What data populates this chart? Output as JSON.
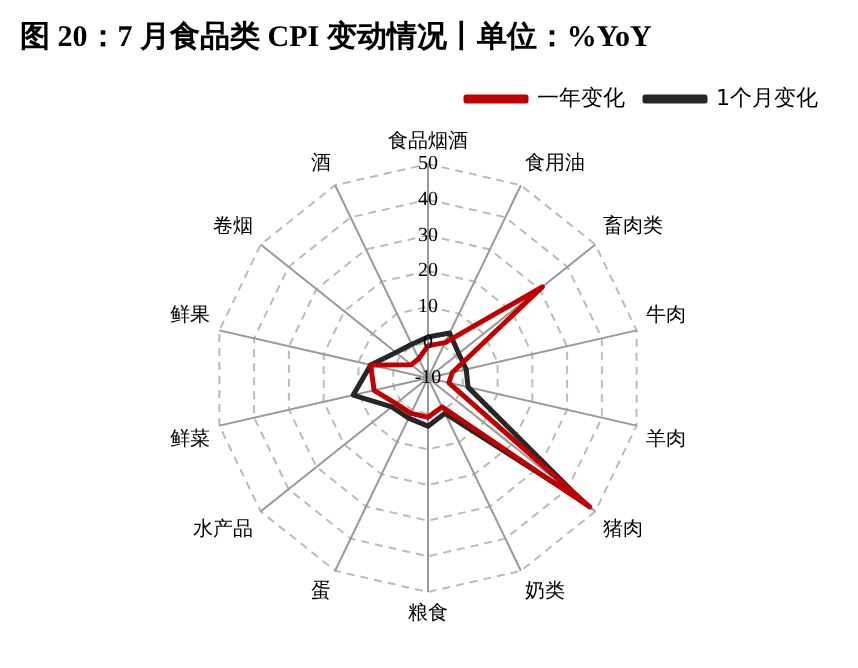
{
  "chart_data": {
    "type": "radar",
    "title": "图 20：7 月食品类 CPI 变动情况丨单位：%YoY",
    "categories": [
      "食品烟酒",
      "食用油",
      "畜肉类",
      "牛肉",
      "羊肉",
      "猪肉",
      "奶类",
      "粮食",
      "蛋",
      "水产品",
      "鲜菜",
      "鲜果",
      "卷烟",
      "酒"
    ],
    "series": [
      {
        "name": "一年变化",
        "color": "#c00000",
        "values": [
          -1,
          1,
          31,
          -3,
          -4,
          48,
          -1,
          1,
          1,
          1.5,
          5.5,
          6.5,
          -4,
          -4
        ]
      },
      {
        "name": "1个月变化",
        "color": "#262626",
        "values": [
          1.5,
          4,
          1,
          1,
          1.5,
          45,
          1,
          3.5,
          2.5,
          3,
          11.5,
          6.5,
          1.5,
          0.5
        ]
      }
    ],
    "ylim": [
      -10,
      50
    ],
    "yticks": [
      -10,
      0,
      10,
      20,
      30,
      40,
      50
    ],
    "grid": true,
    "legend": "top right",
    "marker": "none",
    "line_style": "solid"
  }
}
